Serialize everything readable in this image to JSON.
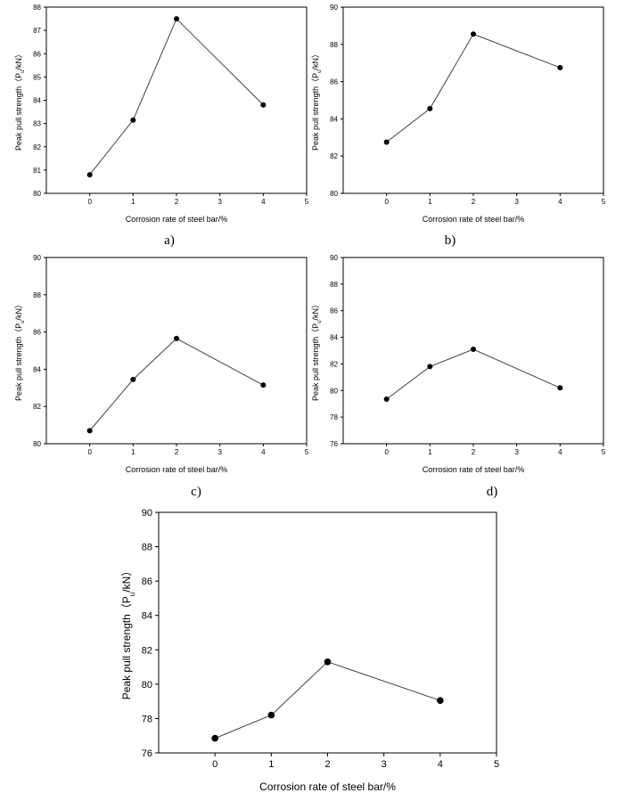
{
  "figure": {
    "chart_data": [
      {
        "type": "line",
        "panel_label": "a)",
        "xlabel": "Corrosion rate of steel bar/%",
        "ylabel_main": "Peak pull strength（P",
        "ylabel_sub": "u",
        "ylabel_end": "/kN）",
        "xlim": [
          -1,
          5
        ],
        "ylim": [
          80,
          88
        ],
        "xticks": [
          "0",
          "1",
          "2",
          "3",
          "4",
          "5"
        ],
        "yticks": [
          "80",
          "81",
          "82",
          "83",
          "84",
          "85",
          "86",
          "87",
          "88"
        ],
        "x": [
          0,
          1,
          2,
          4
        ],
        "y": [
          80.8,
          83.15,
          87.5,
          83.8
        ]
      },
      {
        "type": "line",
        "panel_label": "b)",
        "xlabel": "Corrosion rate of steel bar/%",
        "ylabel_main": "Peak pull strength（P",
        "ylabel_sub": "u",
        "ylabel_end": "/kN）",
        "xlim": [
          -1,
          5
        ],
        "ylim": [
          80,
          90
        ],
        "xticks": [
          "0",
          "1",
          "2",
          "3",
          "4",
          "5"
        ],
        "yticks": [
          "80",
          "82",
          "84",
          "86",
          "88",
          "90"
        ],
        "x": [
          0,
          1,
          2,
          4
        ],
        "y": [
          82.75,
          84.55,
          88.55,
          86.75
        ]
      },
      {
        "type": "line",
        "panel_label": "c)",
        "xlabel": "Corrosion rate of steel bar/%",
        "ylabel_main": "Peak pull strength（P",
        "ylabel_sub": "u",
        "ylabel_end": "/kN）",
        "xlim": [
          -1,
          5
        ],
        "ylim": [
          80,
          90
        ],
        "xticks": [
          "0",
          "1",
          "2",
          "3",
          "4",
          "5"
        ],
        "yticks": [
          "80",
          "82",
          "84",
          "86",
          "88",
          "90"
        ],
        "x": [
          0,
          1,
          2,
          4
        ],
        "y": [
          80.7,
          83.45,
          85.65,
          83.15
        ]
      },
      {
        "type": "line",
        "panel_label": "d)",
        "xlabel": "Corrosion rate of steel bar/%",
        "ylabel_main": "Peak pull strength（P",
        "ylabel_sub": "u",
        "ylabel_end": "/kN）",
        "xlim": [
          -1,
          5
        ],
        "ylim": [
          76,
          90
        ],
        "xticks": [
          "0",
          "1",
          "2",
          "3",
          "4",
          "5"
        ],
        "yticks": [
          "76",
          "78",
          "80",
          "82",
          "84",
          "86",
          "88",
          "90"
        ],
        "x": [
          0,
          1,
          2,
          4
        ],
        "y": [
          79.35,
          81.8,
          83.1,
          80.2
        ]
      },
      {
        "type": "line",
        "panel_label": "",
        "xlabel": "Corrosion rate of steel bar/%",
        "ylabel_main": "Peak pull strength（P",
        "ylabel_sub": "u",
        "ylabel_end": "/kN）",
        "xlim": [
          -1,
          5
        ],
        "ylim": [
          76,
          90
        ],
        "xticks": [
          "0",
          "1",
          "2",
          "3",
          "4",
          "5"
        ],
        "yticks": [
          "76",
          "78",
          "80",
          "82",
          "84",
          "86",
          "88",
          "90"
        ],
        "x": [
          0,
          1,
          2,
          4
        ],
        "y": [
          76.85,
          78.2,
          81.3,
          79.05
        ]
      }
    ]
  }
}
